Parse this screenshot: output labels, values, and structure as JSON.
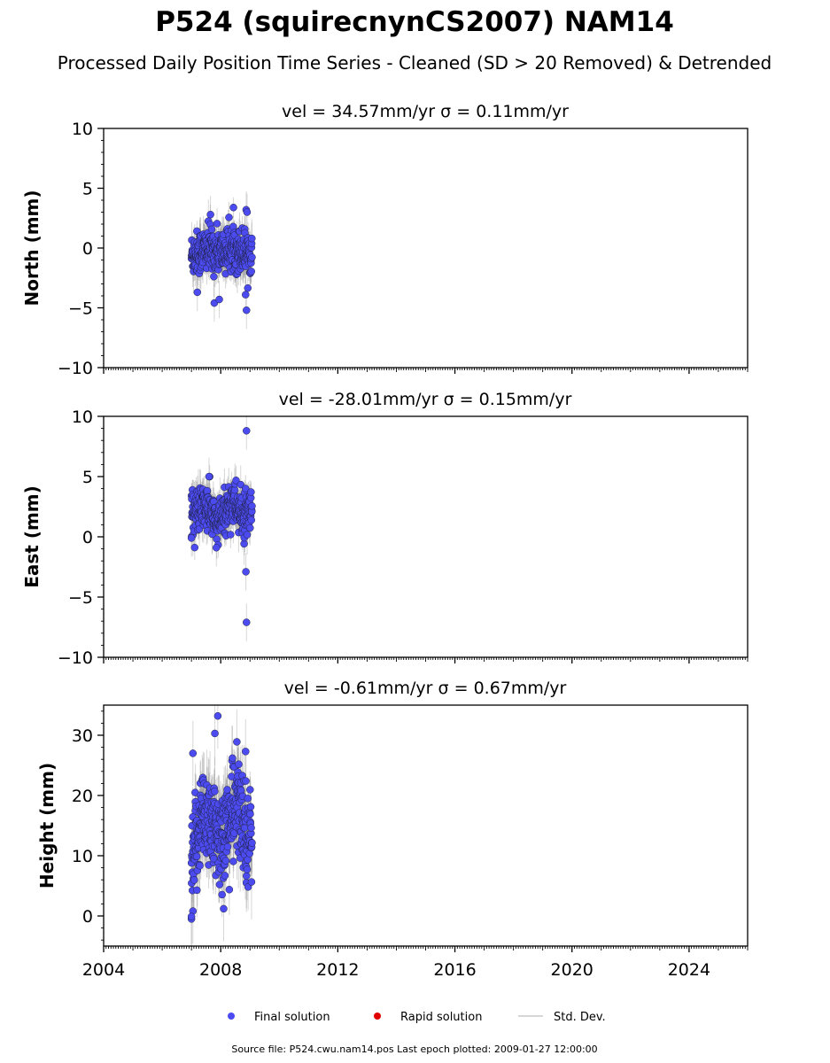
{
  "figure": {
    "title": "P524 (squirecnynCS2007) NAM14",
    "subtitle": "Processed Daily Position Time Series - Cleaned (SD > 20 Removed) & Detrended",
    "legend": {
      "final": "Final solution",
      "rapid": "Rapid solution",
      "std": "Std. Dev."
    },
    "source": "Source file: P524.cwu.nam14.pos  Last epoch plotted: 2009-01-27 12:00:00",
    "colors": {
      "final": "#4b4bf0",
      "rapid": "#e00000",
      "std": "#c8c8c8",
      "edge": "#222244"
    }
  },
  "panels": [
    {
      "title": "vel = 34.57mm/yr   σ = 0.11mm/yr",
      "ylabel": "North (mm)"
    },
    {
      "title": "vel = -28.01mm/yr   σ = 0.15mm/yr",
      "ylabel": "East (mm)"
    },
    {
      "title": "vel = -0.61mm/yr   σ = 0.67mm/yr",
      "ylabel": "Height (mm)"
    }
  ],
  "chart_data": [
    {
      "type": "scatter",
      "title": "vel = 34.57mm/yr   σ = 0.11mm/yr",
      "ylabel": "North (mm)",
      "xlim": [
        2004,
        2026
      ],
      "ylim": [
        -10,
        10
      ],
      "xticks": [
        2004,
        2008,
        2012,
        2016,
        2020,
        2024
      ],
      "yticks": [
        -10,
        -5,
        0,
        5,
        10
      ],
      "ytick_labels": [
        "−10",
        "−5",
        "0",
        "5",
        "10"
      ],
      "x_labels_shown": false,
      "sample_step": 0.0055,
      "range": [
        2007.0,
        2009.07
      ],
      "baseline": [
        [
          2007.0,
          -0.6
        ],
        [
          2007.5,
          -0.1
        ],
        [
          2008.0,
          -0.3
        ],
        [
          2008.5,
          0.0
        ],
        [
          2009.07,
          -0.4
        ]
      ],
      "noise_sd": 0.9,
      "err": 1.3,
      "outliers": [
        [
          2007.65,
          2.8
        ],
        [
          2008.87,
          3.2
        ],
        [
          2008.9,
          3.0
        ],
        [
          2008.88,
          -5.2
        ],
        [
          2007.78,
          -4.6
        ],
        [
          2007.95,
          -4.3
        ],
        [
          2007.2,
          -3.7
        ],
        [
          2008.85,
          -3.9
        ]
      ]
    },
    {
      "type": "scatter",
      "title": "vel = -28.01mm/yr   σ = 0.15mm/yr",
      "ylabel": "East (mm)",
      "xlim": [
        2004,
        2026
      ],
      "ylim": [
        -10,
        10
      ],
      "xticks": [
        2004,
        2008,
        2012,
        2016,
        2020,
        2024
      ],
      "yticks": [
        -10,
        -5,
        0,
        5,
        10
      ],
      "ytick_labels": [
        "−10",
        "−5",
        "0",
        "5",
        "10"
      ],
      "x_labels_shown": false,
      "sample_step": 0.0055,
      "range": [
        2007.0,
        2009.07
      ],
      "baseline": [
        [
          2007.0,
          2.0
        ],
        [
          2007.5,
          2.5
        ],
        [
          2007.9,
          1.0
        ],
        [
          2008.4,
          3.0
        ],
        [
          2008.8,
          1.5
        ],
        [
          2009.07,
          2.0
        ]
      ],
      "noise_sd": 0.9,
      "err": 1.3,
      "outliers": [
        [
          2008.88,
          8.8
        ],
        [
          2008.88,
          -7.1
        ],
        [
          2008.86,
          -2.9
        ],
        [
          2007.6,
          5.0
        ],
        [
          2007.0,
          -0.1
        ],
        [
          2007.85,
          -0.9
        ]
      ]
    },
    {
      "type": "scatter",
      "title": "vel = -0.61mm/yr   σ = 0.67mm/yr",
      "ylabel": "Height (mm)",
      "xlim": [
        2004,
        2026
      ],
      "ylim": [
        -5,
        35
      ],
      "xticks": [
        2004,
        2008,
        2012,
        2016,
        2020,
        2024
      ],
      "xtick_labels": [
        "2004",
        "2008",
        "2012",
        "2016",
        "2020",
        "2024"
      ],
      "yticks": [
        0,
        10,
        20,
        30
      ],
      "ytick_labels": [
        "0",
        "10",
        "20",
        "30"
      ],
      "x_labels_shown": true,
      "sample_step": 0.0055,
      "range": [
        2007.0,
        2009.07
      ],
      "baseline": [
        [
          2007.0,
          7.0
        ],
        [
          2007.3,
          16.0
        ],
        [
          2007.6,
          17.0
        ],
        [
          2007.9,
          12.0
        ],
        [
          2008.2,
          15.0
        ],
        [
          2008.6,
          18.0
        ],
        [
          2009.07,
          12.0
        ]
      ],
      "noise_sd": 4.0,
      "err": 4.5,
      "outliers": [
        [
          2007.9,
          33.2
        ],
        [
          2007.8,
          30.3
        ],
        [
          2008.55,
          28.9
        ],
        [
          2008.85,
          27.3
        ],
        [
          2007.05,
          27.0
        ],
        [
          2008.4,
          26.2
        ],
        [
          2007.0,
          -0.5
        ],
        [
          2007.05,
          0.8
        ],
        [
          2007.0,
          -0.1
        ],
        [
          2008.1,
          1.2
        ]
      ]
    }
  ]
}
